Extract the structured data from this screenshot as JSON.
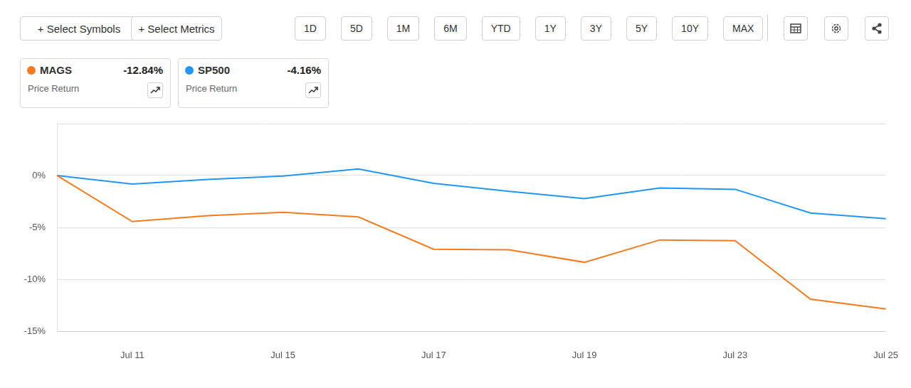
{
  "toolbar": {
    "buttons": [
      "+ Select Symbols",
      "+ Select Metrics"
    ],
    "ranges": [
      "1D",
      "5D",
      "1M",
      "6M",
      "YTD",
      "1Y",
      "3Y",
      "5Y",
      "10Y",
      "MAX"
    ]
  },
  "legend_cards": [
    {
      "change": "-12.84%",
      "metric": "Price Return"
    },
    {
      "change": "-4.16%",
      "metric": "Price Return"
    }
  ],
  "chart_data": {
    "type": "line",
    "categories": [
      null,
      "Jul 11",
      null,
      "Jul 15",
      null,
      "Jul 17",
      null,
      "Jul 19",
      null,
      "Jul 23",
      null,
      "Jul 25"
    ],
    "series": [
      {
        "name": "MAGS",
        "color": "#f47b20",
        "values": [
          0,
          -4.43,
          -3.86,
          -3.54,
          -3.99,
          -7.09,
          -7.15,
          -8.35,
          -6.2,
          -6.27,
          -11.9,
          -12.84
        ]
      },
      {
        "name": "SP500",
        "color": "#2196f3",
        "values": [
          0,
          -0.82,
          -0.38,
          -0.05,
          0.63,
          -0.76,
          -1.52,
          -2.22,
          -1.2,
          -1.33,
          -3.61,
          -4.16
        ]
      }
    ],
    "ylim": [
      -15,
      5
    ],
    "yticks": [
      {
        "value": -15,
        "label": "-15%"
      },
      {
        "value": -10,
        "label": "-10%"
      },
      {
        "value": -5,
        "label": "-5%"
      },
      {
        "value": 0,
        "label": "0%"
      }
    ],
    "grid": true
  }
}
